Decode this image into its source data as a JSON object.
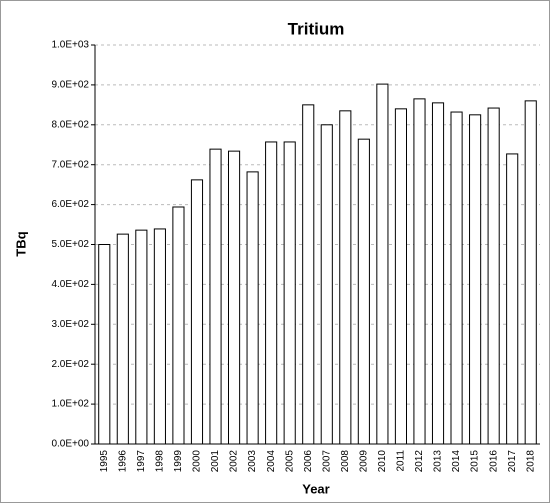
{
  "chart_data": {
    "type": "bar",
    "title": "Tritium",
    "x_label": "Year",
    "y_label": "TBq",
    "categories": [
      "1995",
      "1996",
      "1997",
      "1998",
      "1999",
      "2000",
      "2001",
      "2002",
      "2003",
      "2004",
      "2005",
      "2006",
      "2007",
      "2008",
      "2009",
      "2010",
      "2011",
      "2012",
      "2013",
      "2014",
      "2015",
      "2016",
      "2017",
      "2018"
    ],
    "values": [
      500,
      526,
      536,
      539,
      594,
      662,
      739,
      734,
      682,
      757,
      757,
      850,
      800,
      835,
      764,
      902,
      840,
      865,
      855,
      832,
      825,
      842,
      727,
      860
    ],
    "color": "#ffffff",
    "ylim": [
      0,
      1000
    ],
    "yticks": [
      {
        "value": 0,
        "label": "0.0E+00"
      },
      {
        "value": 100,
        "label": "1.0E+02"
      },
      {
        "value": 200,
        "label": "2.0E+02"
      },
      {
        "value": 300,
        "label": "3.0E+02"
      },
      {
        "value": 400,
        "label": "4.0E+02"
      },
      {
        "value": 500,
        "label": "5.0E+02"
      },
      {
        "value": 600,
        "label": "6.0E+02"
      },
      {
        "value": 700,
        "label": "7.0E+02"
      },
      {
        "value": 800,
        "label": "8.0E+02"
      },
      {
        "value": 900,
        "label": "9.0E+02"
      },
      {
        "value": 1000,
        "label": "1.0E+03"
      }
    ],
    "grid": true
  }
}
